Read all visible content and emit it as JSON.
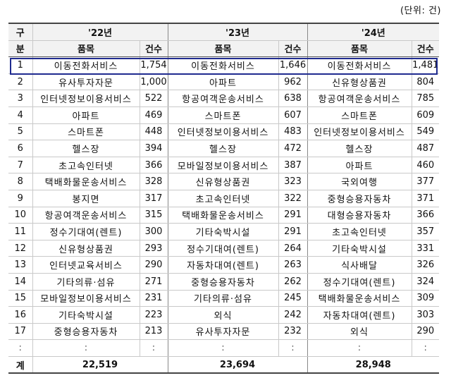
{
  "unit": "(단위: 건)",
  "header": {
    "rank_top": "구",
    "rank_bottom": "분",
    "years": [
      "'22년",
      "'23년",
      "'24년"
    ],
    "item_label": "품목",
    "count_label": "건수"
  },
  "rows": [
    {
      "no": "1",
      "y22": {
        "item": "이동전화서비스",
        "count": "1,754"
      },
      "y23": {
        "item": "이동전화서비스",
        "count": "1,646"
      },
      "y24": {
        "item": "이동전화서비스",
        "count": "1,481"
      }
    },
    {
      "no": "2",
      "y22": {
        "item": "유사투자자문",
        "count": "1,000"
      },
      "y23": {
        "item": "아파트",
        "count": "962"
      },
      "y24": {
        "item": "신유형상품권",
        "count": "804"
      }
    },
    {
      "no": "3",
      "y22": {
        "item": "인터넷정보이용서비스",
        "count": "522"
      },
      "y23": {
        "item": "항공여객운송서비스",
        "count": "638"
      },
      "y24": {
        "item": "항공여객운송서비스",
        "count": "785"
      }
    },
    {
      "no": "4",
      "y22": {
        "item": "아파트",
        "count": "469"
      },
      "y23": {
        "item": "스마트폰",
        "count": "607"
      },
      "y24": {
        "item": "스마트폰",
        "count": "609"
      }
    },
    {
      "no": "5",
      "y22": {
        "item": "스마트폰",
        "count": "448"
      },
      "y23": {
        "item": "인터넷정보이용서비스",
        "count": "483"
      },
      "y24": {
        "item": "인터넷정보이용서비스",
        "count": "549"
      }
    },
    {
      "no": "6",
      "y22": {
        "item": "헬스장",
        "count": "394"
      },
      "y23": {
        "item": "헬스장",
        "count": "472"
      },
      "y24": {
        "item": "헬스장",
        "count": "487"
      }
    },
    {
      "no": "7",
      "y22": {
        "item": "초고속인터넷",
        "count": "366"
      },
      "y23": {
        "item": "모바일정보이용서비스",
        "count": "387"
      },
      "y24": {
        "item": "아파트",
        "count": "460"
      }
    },
    {
      "no": "8",
      "y22": {
        "item": "택배화물운송서비스",
        "count": "328"
      },
      "y23": {
        "item": "신유형상품권",
        "count": "323"
      },
      "y24": {
        "item": "국외여행",
        "count": "377"
      }
    },
    {
      "no": "9",
      "y22": {
        "item": "봉지면",
        "count": "317"
      },
      "y23": {
        "item": "초고속인터넷",
        "count": "322"
      },
      "y24": {
        "item": "중형승용자동차",
        "count": "371"
      }
    },
    {
      "no": "10",
      "y22": {
        "item": "항공여객운송서비스",
        "count": "315"
      },
      "y23": {
        "item": "택배화물운송서비스",
        "count": "291"
      },
      "y24": {
        "item": "대형승용자동차",
        "count": "366"
      }
    },
    {
      "no": "11",
      "y22": {
        "item": "정수기대여(렌트)",
        "count": "300"
      },
      "y23": {
        "item": "기타숙박시설",
        "count": "291"
      },
      "y24": {
        "item": "초고속인터넷",
        "count": "357"
      }
    },
    {
      "no": "12",
      "y22": {
        "item": "신유형상품권",
        "count": "293"
      },
      "y23": {
        "item": "정수기대여(렌트)",
        "count": "264"
      },
      "y24": {
        "item": "기타숙박시설",
        "count": "331"
      }
    },
    {
      "no": "13",
      "y22": {
        "item": "인터넷교육서비스",
        "count": "290"
      },
      "y23": {
        "item": "자동차대여(렌트)",
        "count": "263"
      },
      "y24": {
        "item": "식사배달",
        "count": "326"
      }
    },
    {
      "no": "14",
      "y22": {
        "item": "기타의류·섬유",
        "count": "271"
      },
      "y23": {
        "item": "중형승용자동차",
        "count": "262"
      },
      "y24": {
        "item": "정수기대여(렌트)",
        "count": "324"
      }
    },
    {
      "no": "15",
      "y22": {
        "item": "모바일정보이용서비스",
        "count": "231"
      },
      "y23": {
        "item": "기타의류·섬유",
        "count": "245"
      },
      "y24": {
        "item": "택배화물운송서비스",
        "count": "309"
      }
    },
    {
      "no": "16",
      "y22": {
        "item": "기타숙박시설",
        "count": "223"
      },
      "y23": {
        "item": "외식",
        "count": "242"
      },
      "y24": {
        "item": "자동차대여(렌트)",
        "count": "303"
      }
    },
    {
      "no": "17",
      "y22": {
        "item": "중형승용자동차",
        "count": "213"
      },
      "y23": {
        "item": "유사투자자문",
        "count": "232"
      },
      "y24": {
        "item": "외식",
        "count": "290"
      }
    }
  ],
  "ellipsis": ":",
  "total": {
    "label": "계",
    "y22": "22,519",
    "y23": "23,694",
    "y24": "28,948"
  }
}
